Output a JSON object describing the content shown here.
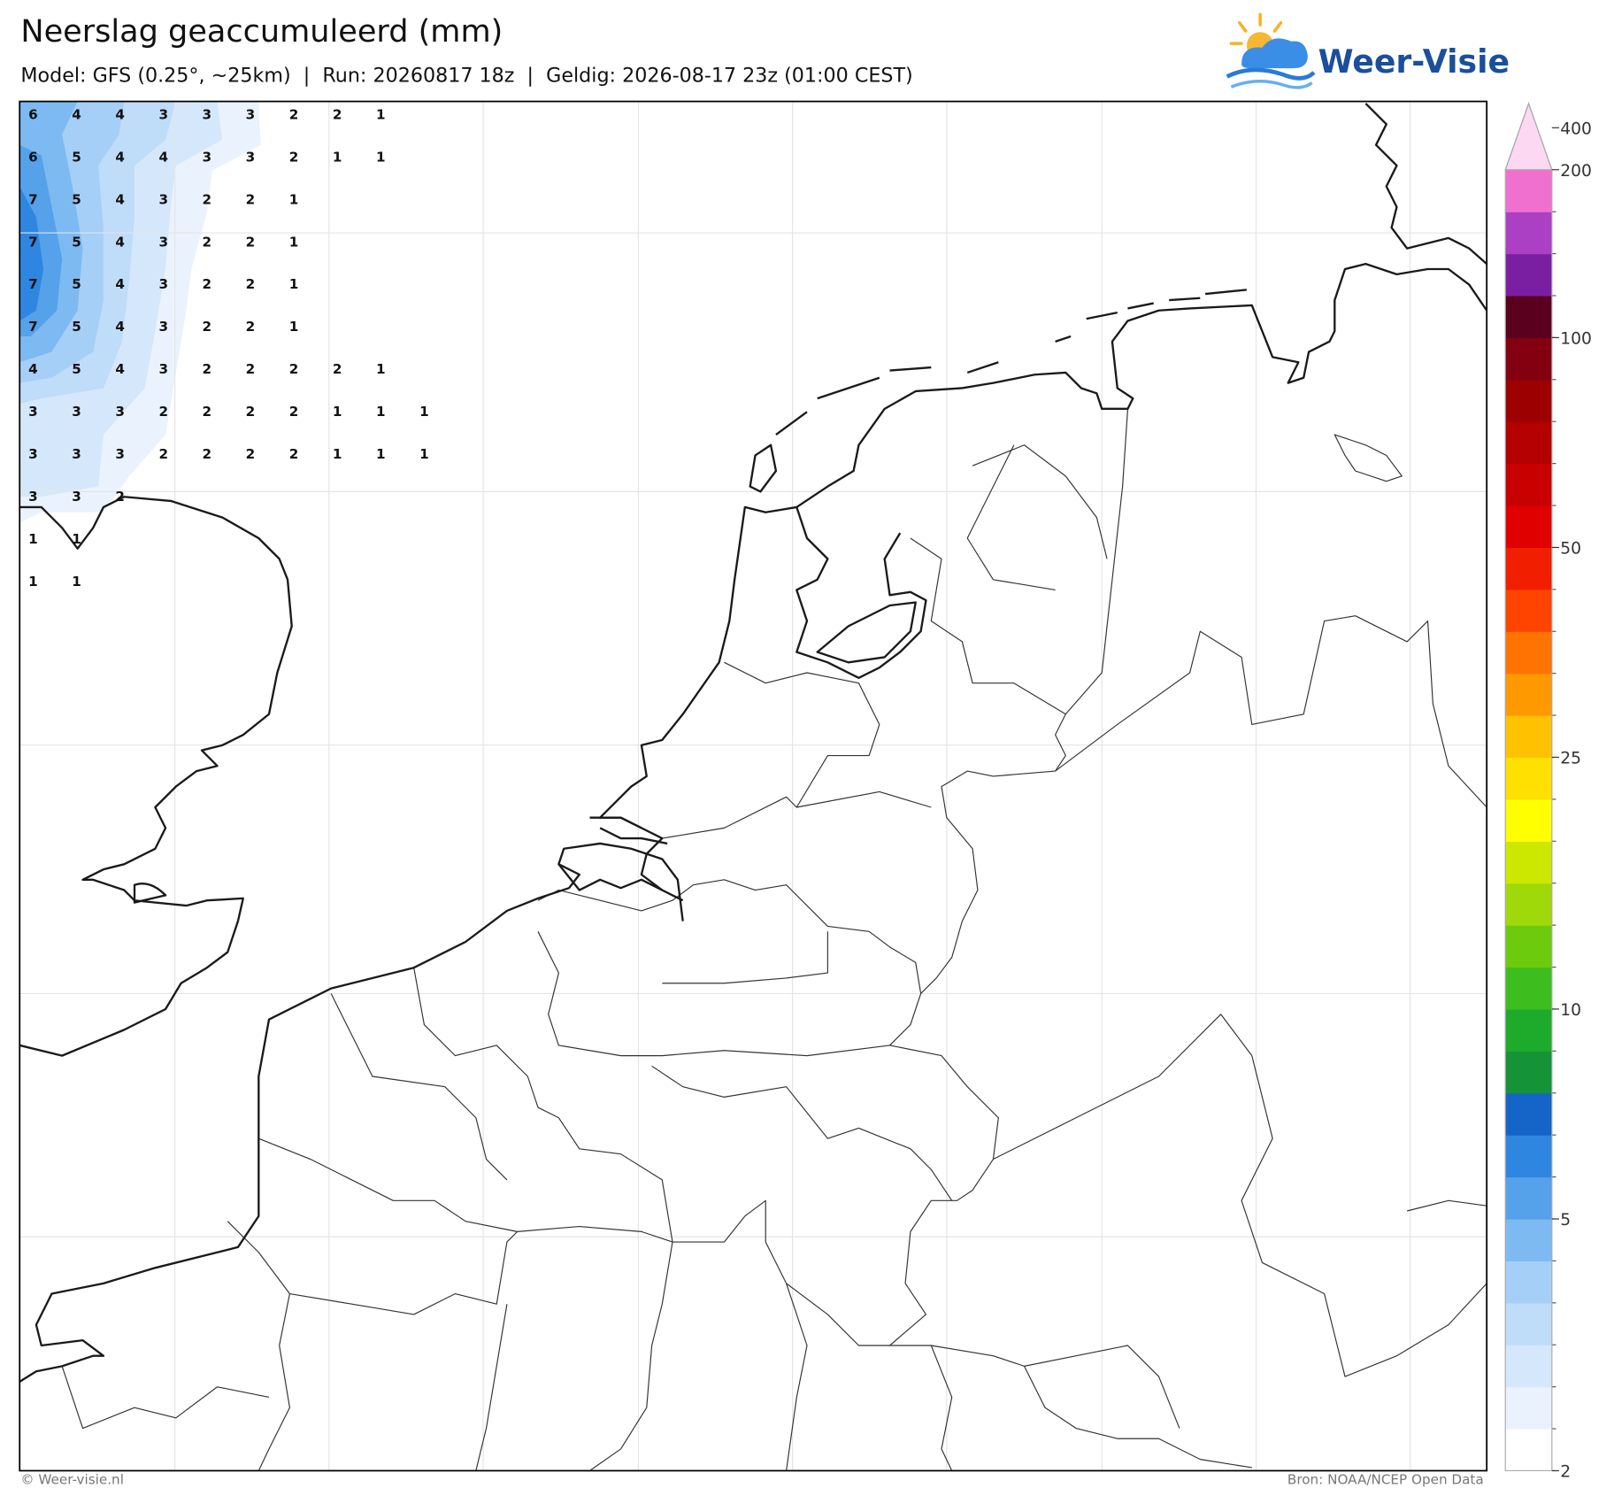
{
  "header": {
    "title": "Neerslag geaccumuleerd (mm)",
    "subtitle": "Model: GFS (0.25°, ~25km)  |  Run: 20260817 18z  |  Geldig: 2026-08-17 23z (01:00 CEST)",
    "logo": "Weer-Visie"
  },
  "precip_labels": {
    "rows": [
      [
        6,
        4,
        4,
        3,
        3,
        3,
        2,
        2,
        1
      ],
      [
        6,
        5,
        4,
        4,
        3,
        3,
        2,
        1,
        1
      ],
      [
        7,
        5,
        4,
        3,
        2,
        2,
        1
      ],
      [
        7,
        5,
        4,
        3,
        2,
        2,
        1
      ],
      [
        7,
        5,
        4,
        3,
        2,
        2,
        1
      ],
      [
        7,
        5,
        4,
        3,
        2,
        2,
        1
      ],
      [
        4,
        5,
        4,
        3,
        2,
        2,
        2,
        2,
        1
      ],
      [
        3,
        3,
        3,
        2,
        2,
        2,
        2,
        1,
        1,
        1
      ],
      [
        3,
        3,
        3,
        2,
        2,
        2,
        2,
        1,
        1,
        1
      ],
      [
        3,
        3,
        2
      ],
      [
        1,
        1
      ],
      [
        1,
        1
      ]
    ]
  },
  "colorbar": {
    "ticks": [
      2,
      5,
      10,
      25,
      50,
      100,
      200,
      400
    ],
    "colors": [
      "#ffffff",
      "#eaf3fd",
      "#d5e8fb",
      "#bfdcf9",
      "#a5cff7",
      "#7dbaf1",
      "#55a2ea",
      "#2f86e0",
      "#1565c8",
      "#149437",
      "#1eaa2a",
      "#3dbd1e",
      "#6ccb0c",
      "#a0d90a",
      "#cce800",
      "#ffff00",
      "#ffe000",
      "#ffc200",
      "#ff9900",
      "#ff7300",
      "#ff4400",
      "#f21e00",
      "#e00000",
      "#c80000",
      "#b40000",
      "#9c0000",
      "#820010",
      "#5a001e",
      "#7b1fa2",
      "#ab40c4",
      "#f070d0"
    ],
    "arrow_color": "#fcd8f2"
  },
  "footer": {
    "left": "© Weer-visie.nl",
    "right": "Bron: NOAA/NCEP Open Data"
  }
}
